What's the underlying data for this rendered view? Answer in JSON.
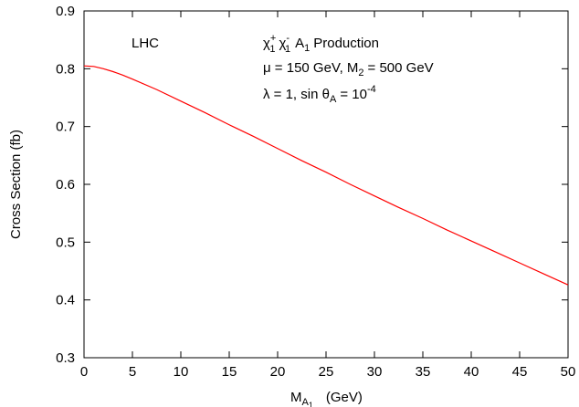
{
  "chart_data": {
    "type": "line",
    "ylabel": "Cross Section   (fb)",
    "xlabel": {
      "main": "M",
      "sub": "A",
      "subsub": "1",
      "unit": "(GeV)"
    },
    "xlim": [
      0,
      50
    ],
    "ylim": [
      0.3,
      0.9
    ],
    "x_ticks": [
      "0",
      "5",
      "10",
      "15",
      "20",
      "25",
      "30",
      "35",
      "40",
      "45",
      "50"
    ],
    "y_ticks": [
      "0.3",
      "0.4",
      "0.5",
      "0.6",
      "0.7",
      "0.8",
      "0.9"
    ],
    "grid": false,
    "series": [
      {
        "color": "#ff0000",
        "x": [
          0,
          1,
          2,
          3,
          4,
          5,
          7.5,
          10,
          12.5,
          15,
          17.5,
          20,
          22.5,
          25,
          27.5,
          30,
          32.5,
          35,
          37.5,
          40,
          42.5,
          45,
          47.5,
          50
        ],
        "y": [
          0.805,
          0.804,
          0.8,
          0.795,
          0.789,
          0.782,
          0.764,
          0.744,
          0.724,
          0.703,
          0.683,
          0.662,
          0.641,
          0.621,
          0.6,
          0.58,
          0.56,
          0.541,
          0.521,
          0.502,
          0.483,
          0.464,
          0.445,
          0.426
        ]
      }
    ],
    "annotations": {
      "collider": "LHC",
      "process": {
        "chi": "χ",
        "sup1": "+",
        "sub1": "1",
        "sup2": "-",
        "sub2": "1",
        "a": "A",
        "a_sub": "1",
        "rest": "Production"
      },
      "params_line": {
        "mu": "μ = 150 GeV, M",
        "m2_sub": "2",
        "m2_rest": "= 500 GeV"
      },
      "lambda_line": {
        "text": "λ = 1, sin θ",
        "theta_sub": "A",
        "eq": "= 10",
        "exp": "-4"
      }
    }
  }
}
